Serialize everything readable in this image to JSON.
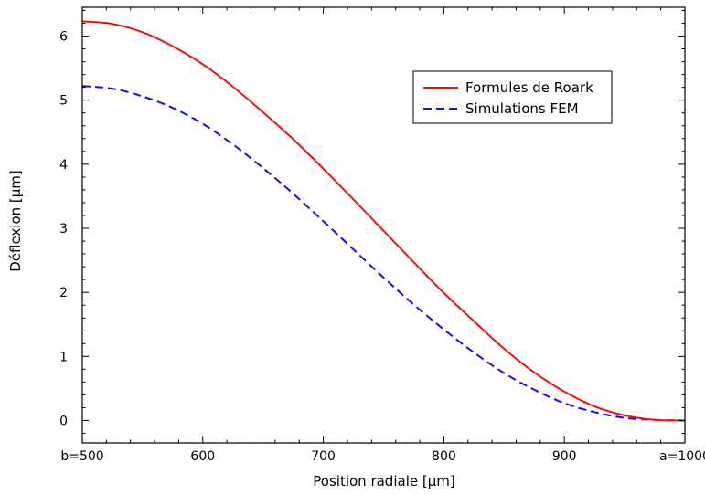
{
  "chart_data": {
    "type": "line",
    "title": "",
    "xlabel": "Position radiale [µm]",
    "ylabel": "Déflexion [µm]",
    "xlim": [
      500,
      1000
    ],
    "ylim": [
      -0.35,
      6.45
    ],
    "grid": false,
    "legend_position": "top-right",
    "x_ticks": [
      {
        "value": 500,
        "label": "b=500"
      },
      {
        "value": 600,
        "label": "600"
      },
      {
        "value": 700,
        "label": "700"
      },
      {
        "value": 800,
        "label": "800"
      },
      {
        "value": 900,
        "label": "900"
      },
      {
        "value": 1000,
        "label": "a=1000"
      }
    ],
    "y_ticks": [
      {
        "value": 0,
        "label": "0"
      },
      {
        "value": 1,
        "label": "1"
      },
      {
        "value": 2,
        "label": "2"
      },
      {
        "value": 3,
        "label": "3"
      },
      {
        "value": 4,
        "label": "4"
      },
      {
        "value": 5,
        "label": "5"
      },
      {
        "value": 6,
        "label": "6"
      }
    ],
    "series": [
      {
        "name": "Formules de Roark",
        "color": "#ee1111",
        "style": "solid",
        "x": [
          500,
          525,
          550,
          575,
          600,
          625,
          650,
          675,
          700,
          725,
          750,
          775,
          800,
          825,
          850,
          875,
          900,
          925,
          950,
          975,
          1000
        ],
        "y": [
          6.23,
          6.19,
          6.06,
          5.84,
          5.56,
          5.21,
          4.81,
          4.39,
          3.93,
          3.45,
          2.96,
          2.47,
          1.99,
          1.55,
          1.12,
          0.75,
          0.45,
          0.22,
          0.08,
          0.01,
          0.0
        ]
      },
      {
        "name": "Simulations FEM",
        "color": "#1111ee",
        "style": "dashed",
        "x": [
          500,
          525,
          550,
          575,
          600,
          625,
          650,
          675,
          700,
          725,
          750,
          775,
          800,
          825,
          850,
          875,
          900,
          925,
          950,
          975,
          1000
        ],
        "y": [
          5.22,
          5.18,
          5.06,
          4.88,
          4.63,
          4.31,
          3.94,
          3.54,
          3.11,
          2.67,
          2.23,
          1.81,
          1.42,
          1.06,
          0.74,
          0.48,
          0.27,
          0.13,
          0.04,
          0.01,
          0.0
        ]
      }
    ]
  }
}
